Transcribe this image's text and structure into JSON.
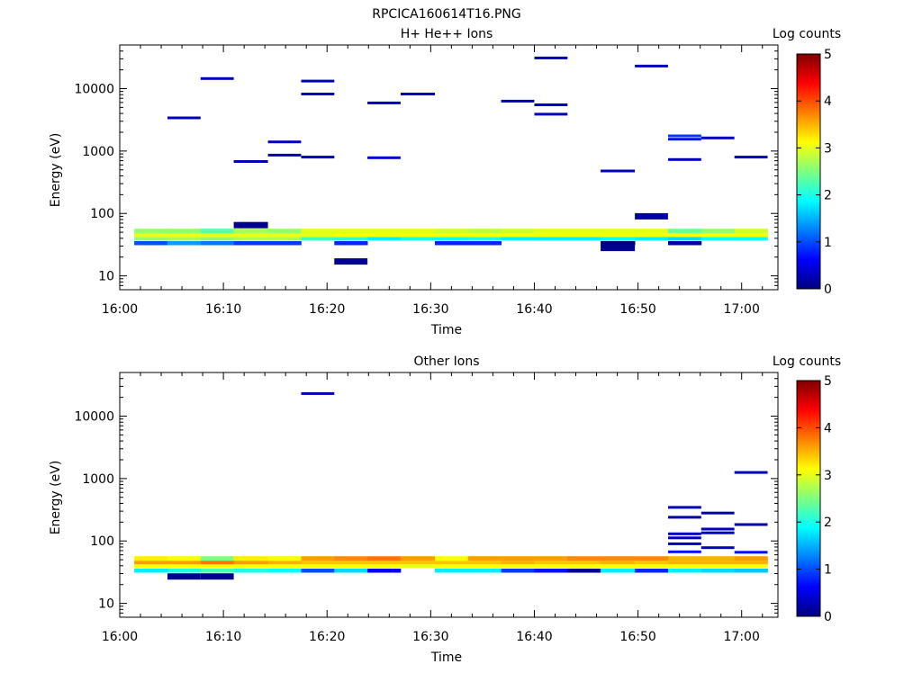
{
  "title": "RPCICA160614T16.PNG",
  "colormap": {
    "stops": [
      "#00007f",
      "#0000ff",
      "#007fff",
      "#00ffff",
      "#7fff7f",
      "#ffff00",
      "#ff7f00",
      "#ff0000",
      "#7f0000"
    ],
    "min": 0,
    "max": 5
  },
  "chart_data": [
    {
      "type": "heatmap",
      "title": "H+ He++ Ions",
      "xlabel": "Time",
      "ylabel": "Energy (eV)",
      "x_ticks": [
        "16:00",
        "16:10",
        "16:20",
        "16:30",
        "16:40",
        "16:50",
        "17:00"
      ],
      "x_tick_minutes": [
        0,
        10,
        20,
        30,
        40,
        50,
        60
      ],
      "xlim_minutes": [
        0,
        63.5
      ],
      "y_scale": "log",
      "ylim": [
        6,
        50000
      ],
      "y_ticks": [
        10,
        100,
        1000,
        10000
      ],
      "y_tick_labels": [
        "10",
        "100",
        "1000",
        "10000"
      ],
      "colorbar": {
        "label": "Log counts",
        "ticks": [
          0,
          1,
          2,
          3,
          4,
          5
        ],
        "tick_labels": [
          "0",
          "1",
          "2",
          "3",
          "4",
          "5"
        ]
      },
      "columns_start_minutes": [
        1.4,
        4.6,
        7.8,
        11.0,
        14.3,
        17.5,
        20.7,
        23.9,
        27.1,
        30.4,
        33.6,
        36.8,
        40.0,
        43.2,
        46.4,
        49.7,
        52.9,
        56.1,
        59.3,
        62.5
      ],
      "band_levels": {
        "band_52eV": [
          2.6,
          2.6,
          2.3,
          2.7,
          2.6,
          3.0,
          3.0,
          3.0,
          3.0,
          2.9,
          2.8,
          2.9,
          3.0,
          3.0,
          3.0,
          3.0,
          2.4,
          2.6,
          2.9
        ],
        "band_45eV": [
          3.0,
          3.0,
          3.0,
          3.0,
          3.0,
          3.0,
          3.1,
          3.1,
          3.1,
          3.1,
          3.1,
          3.1,
          3.1,
          3.1,
          3.1,
          3.1,
          3.1,
          3.1,
          3.1
        ],
        "band_39eV": [
          2.6,
          2.7,
          2.6,
          2.7,
          2.7,
          2.2,
          2.1,
          1.8,
          2.0,
          1.9,
          2.0,
          1.8,
          1.8,
          1.8,
          1.9,
          1.8,
          1.7,
          1.9,
          1.9
        ],
        "band_33eV": [
          1.0,
          1.4,
          1.2,
          0.9,
          0.9,
          null,
          0.8,
          null,
          null,
          0.8,
          0.8,
          null,
          null,
          null,
          0.0,
          null,
          0.2,
          null,
          null
        ]
      },
      "sparse_cells": [
        {
          "t_minutes": 4.6,
          "energy_eV": 3400,
          "level": 0.3
        },
        {
          "t_minutes": 7.8,
          "energy_eV": 14500,
          "level": 0.3
        },
        {
          "t_minutes": 11.0,
          "energy_eV": 680,
          "level": 0.3
        },
        {
          "t_minutes": 11.0,
          "energy_eV": 65,
          "level": 0.1
        },
        {
          "t_minutes": 14.3,
          "energy_eV": 1400,
          "level": 0.3
        },
        {
          "t_minutes": 14.3,
          "energy_eV": 860,
          "level": 0.3
        },
        {
          "t_minutes": 17.5,
          "energy_eV": 13200,
          "level": 0.3
        },
        {
          "t_minutes": 17.5,
          "energy_eV": 8200,
          "level": 0.3
        },
        {
          "t_minutes": 17.5,
          "energy_eV": 800,
          "level": 0.3
        },
        {
          "t_minutes": 20.7,
          "energy_eV": 17,
          "level": 0.1
        },
        {
          "t_minutes": 23.9,
          "energy_eV": 5900,
          "level": 0.3
        },
        {
          "t_minutes": 23.9,
          "energy_eV": 780,
          "level": 0.4
        },
        {
          "t_minutes": 27.1,
          "energy_eV": 8200,
          "level": 0.3
        },
        {
          "t_minutes": 36.8,
          "energy_eV": 6300,
          "level": 0.3
        },
        {
          "t_minutes": 40.0,
          "energy_eV": 31000,
          "level": 0.3
        },
        {
          "t_minutes": 40.0,
          "energy_eV": 5500,
          "level": 0.3
        },
        {
          "t_minutes": 40.0,
          "energy_eV": 3900,
          "level": 0.3
        },
        {
          "t_minutes": 46.4,
          "energy_eV": 480,
          "level": 0.3
        },
        {
          "t_minutes": 46.4,
          "energy_eV": 28,
          "level": 0.1
        },
        {
          "t_minutes": 49.7,
          "energy_eV": 23000,
          "level": 0.3
        },
        {
          "t_minutes": 49.7,
          "energy_eV": 90,
          "level": 0.2
        },
        {
          "t_minutes": 52.9,
          "energy_eV": 1750,
          "level": 0.9
        },
        {
          "t_minutes": 52.9,
          "energy_eV": 1550,
          "level": 0.7
        },
        {
          "t_minutes": 52.9,
          "energy_eV": 730,
          "level": 0.3
        },
        {
          "t_minutes": 56.1,
          "energy_eV": 1620,
          "level": 0.3
        },
        {
          "t_minutes": 59.3,
          "energy_eV": 800,
          "level": 0.3
        }
      ]
    },
    {
      "type": "heatmap",
      "title": "Other Ions",
      "xlabel": "Time",
      "ylabel": "Energy (eV)",
      "x_ticks": [
        "16:00",
        "16:10",
        "16:20",
        "16:30",
        "16:40",
        "16:50",
        "17:00"
      ],
      "x_tick_minutes": [
        0,
        10,
        20,
        30,
        40,
        50,
        60
      ],
      "xlim_minutes": [
        0,
        63.5
      ],
      "y_scale": "log",
      "ylim": [
        6,
        50000
      ],
      "y_ticks": [
        10,
        100,
        1000,
        10000
      ],
      "y_tick_labels": [
        "10",
        "100",
        "1000",
        "10000"
      ],
      "colorbar": {
        "label": "Log counts",
        "ticks": [
          0,
          1,
          2,
          3,
          4,
          5
        ],
        "tick_labels": [
          "0",
          "1",
          "2",
          "3",
          "4",
          "5"
        ]
      },
      "columns_start_minutes": [
        1.4,
        4.6,
        7.8,
        11.0,
        14.3,
        17.5,
        20.7,
        23.9,
        27.1,
        30.4,
        33.6,
        36.8,
        40.0,
        43.2,
        46.4,
        49.7,
        52.9,
        56.1,
        59.3,
        62.5
      ],
      "band_levels": {
        "band_52eV": [
          3.2,
          3.1,
          2.5,
          3.2,
          3.1,
          3.6,
          3.7,
          3.8,
          3.6,
          3.1,
          3.6,
          3.6,
          3.6,
          3.7,
          3.7,
          3.7,
          3.5,
          3.5,
          3.6
        ],
        "band_45eV": [
          3.6,
          3.6,
          3.8,
          3.6,
          3.5,
          3.4,
          3.4,
          3.4,
          3.4,
          3.4,
          3.4,
          3.5,
          3.4,
          3.4,
          3.5,
          3.4,
          3.5,
          3.5,
          3.5
        ],
        "band_39eV": [
          3.1,
          3.1,
          3.1,
          3.1,
          3.1,
          3.1,
          3.1,
          3.1,
          3.0,
          3.1,
          3.1,
          3.1,
          3.1,
          3.1,
          3.1,
          3.1,
          3.1,
          3.1,
          3.1
        ],
        "band_33eV": [
          1.8,
          2.0,
          2.2,
          2.0,
          1.9,
          1.0,
          1.7,
          0.6,
          null,
          1.8,
          1.8,
          0.9,
          0.7,
          0.1,
          1.8,
          0.8,
          1.8,
          1.7,
          1.6
        ]
      },
      "sparse_cells": [
        {
          "t_minutes": 4.6,
          "energy_eV": 27,
          "level": 0.1
        },
        {
          "t_minutes": 7.8,
          "energy_eV": 27,
          "level": 0.1
        },
        {
          "t_minutes": 17.5,
          "energy_eV": 23000,
          "level": 0.3
        },
        {
          "t_minutes": 52.9,
          "energy_eV": 345,
          "level": 0.3
        },
        {
          "t_minutes": 52.9,
          "energy_eV": 240,
          "level": 0.2
        },
        {
          "t_minutes": 52.9,
          "energy_eV": 130,
          "level": 0.3
        },
        {
          "t_minutes": 52.9,
          "energy_eV": 112,
          "level": 0.3
        },
        {
          "t_minutes": 52.9,
          "energy_eV": 90,
          "level": 0.3
        },
        {
          "t_minutes": 52.9,
          "energy_eV": 67,
          "level": 0.7
        },
        {
          "t_minutes": 56.1,
          "energy_eV": 280,
          "level": 0.2
        },
        {
          "t_minutes": 56.1,
          "energy_eV": 155,
          "level": 0.3
        },
        {
          "t_minutes": 56.1,
          "energy_eV": 135,
          "level": 0.3
        },
        {
          "t_minutes": 56.1,
          "energy_eV": 78,
          "level": 0.3
        },
        {
          "t_minutes": 59.3,
          "energy_eV": 1250,
          "level": 0.3
        },
        {
          "t_minutes": 59.3,
          "energy_eV": 183,
          "level": 0.2
        },
        {
          "t_minutes": 59.3,
          "energy_eV": 66,
          "level": 0.7
        }
      ]
    }
  ]
}
